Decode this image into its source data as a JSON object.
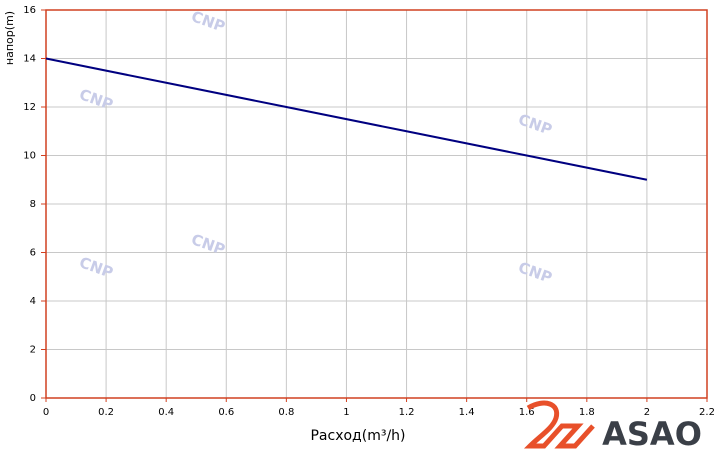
{
  "chart_data": {
    "type": "line",
    "x_label": "Расход(m³/h)",
    "y_label": "напор(m)",
    "watermark": "CNP",
    "x": [
      0,
      0.4,
      0.8,
      1.2,
      1.6,
      2
    ],
    "series": [
      {
        "color": "#000080",
        "values": [
          14,
          13,
          12,
          11,
          10,
          9
        ]
      }
    ],
    "xlim": [
      0,
      2.2
    ],
    "xticks": [
      0,
      0.2,
      0.4,
      0.6,
      0.8,
      1,
      1.2,
      1.4,
      1.6,
      1.8,
      2,
      2.2
    ],
    "ylim": [
      0,
      16
    ],
    "yticks": [
      0,
      2,
      4,
      6,
      8,
      10,
      12,
      14,
      16
    ],
    "grid": true
  },
  "logo": "ASAO"
}
